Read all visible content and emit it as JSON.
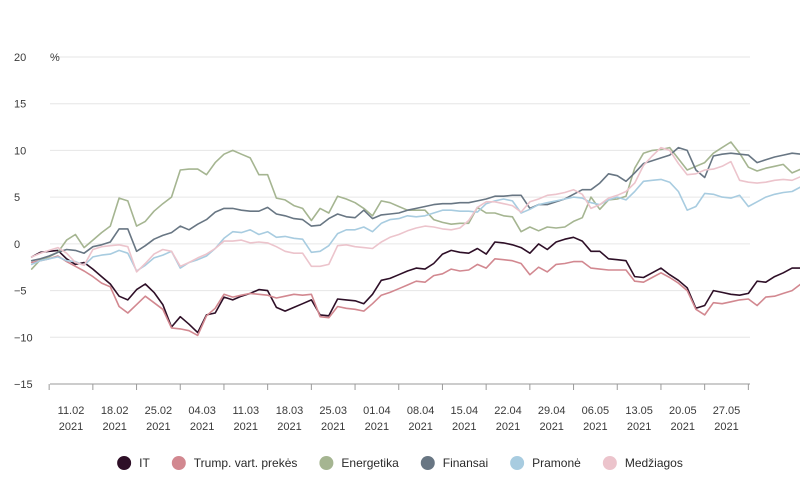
{
  "chart_data": {
    "type": "line",
    "unit_label": "%",
    "ylim": [
      -15,
      20
    ],
    "yticks": [
      20,
      15,
      10,
      5,
      0,
      -5,
      -10,
      -15
    ],
    "ytick_labels": [
      "20",
      "15",
      "10",
      "5",
      "0",
      "−5",
      "−10",
      "−15"
    ],
    "xticks": [
      {
        "line1": "11.02",
        "line2": "2021"
      },
      {
        "line1": "18.02",
        "line2": "2021"
      },
      {
        "line1": "25.02",
        "line2": "2021"
      },
      {
        "line1": "04.03",
        "line2": "2021"
      },
      {
        "line1": "11.03",
        "line2": "2021"
      },
      {
        "line1": "18.03",
        "line2": "2021"
      },
      {
        "line1": "25.03",
        "line2": "2021"
      },
      {
        "line1": "01.04",
        "line2": "2021"
      },
      {
        "line1": "08.04",
        "line2": "2021"
      },
      {
        "line1": "15.04",
        "line2": "2021"
      },
      {
        "line1": "22.04",
        "line2": "2021"
      },
      {
        "line1": "29.04",
        "line2": "2021"
      },
      {
        "line1": "06.05",
        "line2": "2021"
      },
      {
        "line1": "13.05",
        "line2": "2021"
      },
      {
        "line1": "20.05",
        "line2": "2021"
      },
      {
        "line1": "27.05",
        "line2": "2021"
      }
    ],
    "grid": true,
    "legend_position": "bottom",
    "x_start_index": -0.9,
    "x_step": 0.2,
    "series": [
      {
        "name": "IT",
        "color": "#2e0f27",
        "values": [
          -1.4,
          -0.9,
          -0.8,
          -0.7,
          -1.6,
          -2.2,
          -2.0,
          -2.7,
          -3.5,
          -4.3,
          -5.6,
          -6.0,
          -4.9,
          -4.3,
          -5.2,
          -6.5,
          -8.9,
          -7.8,
          -8.6,
          -9.5,
          -7.6,
          -7.4,
          -5.7,
          -6.0,
          -5.6,
          -5.3,
          -4.9,
          -5.0,
          -6.8,
          -7.2,
          -6.8,
          -6.4,
          -6.0,
          -7.6,
          -7.7,
          -5.9,
          -6.0,
          -6.1,
          -6.4,
          -5.4,
          -3.9,
          -3.7,
          -3.3,
          -2.9,
          -2.6,
          -2.7,
          -2.1,
          -1.1,
          -0.7,
          -0.9,
          -1.0,
          -0.5,
          -1.1,
          0.2,
          0.1,
          -0.1,
          -0.4,
          -1.0,
          0.0,
          -0.6,
          0.2,
          0.5,
          0.7,
          0.3,
          -0.8,
          -0.8,
          -1.6,
          -1.7,
          -1.8,
          -3.5,
          -3.6,
          -3.1,
          -2.6,
          -3.3,
          -3.9,
          -4.7,
          -6.9,
          -6.6,
          -5.0,
          -5.2,
          -5.4,
          -5.5,
          -5.3,
          -4.0,
          -4.1,
          -3.5,
          -3.1,
          -2.6,
          -2.6,
          -2.9,
          -2.5,
          -2.4,
          -2.4,
          -2.3
        ]
      },
      {
        "name": "Trump. vart. prekės",
        "color": "#d28890",
        "values": [
          -2.0,
          -1.8,
          -1.6,
          -1.3,
          -1.9,
          -2.4,
          -2.9,
          -3.5,
          -4.2,
          -4.6,
          -6.7,
          -7.4,
          -6.5,
          -5.6,
          -6.3,
          -7.0,
          -9.0,
          -9.1,
          -9.3,
          -9.8,
          -7.7,
          -6.9,
          -5.4,
          -5.7,
          -5.5,
          -5.3,
          -5.4,
          -5.5,
          -5.8,
          -5.6,
          -5.4,
          -5.5,
          -5.4,
          -7.8,
          -7.9,
          -6.7,
          -6.9,
          -7.0,
          -7.2,
          -6.4,
          -5.5,
          -5.2,
          -4.8,
          -4.4,
          -4.0,
          -4.1,
          -3.4,
          -3.2,
          -2.7,
          -2.9,
          -2.8,
          -2.2,
          -2.6,
          -1.6,
          -1.7,
          -1.8,
          -2.1,
          -3.3,
          -2.5,
          -3.0,
          -2.2,
          -2.1,
          -1.9,
          -1.9,
          -2.6,
          -2.7,
          -2.8,
          -2.8,
          -2.8,
          -4.0,
          -4.1,
          -3.6,
          -3.1,
          -3.6,
          -4.2,
          -5.0,
          -7.0,
          -7.6,
          -6.3,
          -6.4,
          -6.2,
          -6.0,
          -5.9,
          -6.6,
          -5.7,
          -5.6,
          -5.3,
          -5.0,
          -4.3,
          -4.0,
          -3.9,
          -3.9,
          -3.8,
          -3.8
        ]
      },
      {
        "name": "Energetika",
        "color": "#a5b591",
        "values": [
          -2.7,
          -1.7,
          -1.4,
          -0.9,
          0.4,
          1.0,
          -0.4,
          0.4,
          1.2,
          1.9,
          4.9,
          4.6,
          1.9,
          2.4,
          3.5,
          4.3,
          5.0,
          7.9,
          8.0,
          8.0,
          7.4,
          8.7,
          9.6,
          10.0,
          9.6,
          9.2,
          7.4,
          7.4,
          4.9,
          4.7,
          4.1,
          3.8,
          2.5,
          3.8,
          3.3,
          5.1,
          4.8,
          4.4,
          3.8,
          3.0,
          4.6,
          4.4,
          4.0,
          3.6,
          3.6,
          3.6,
          2.6,
          2.3,
          2.1,
          2.2,
          2.2,
          3.9,
          3.3,
          3.3,
          3.0,
          2.9,
          1.3,
          1.8,
          1.4,
          1.8,
          1.7,
          1.8,
          2.4,
          2.8,
          5.0,
          3.7,
          4.7,
          4.8,
          5.1,
          8.1,
          9.7,
          10.0,
          10.1,
          10.3,
          9.1,
          7.9,
          8.3,
          8.7,
          9.7,
          10.3,
          10.9,
          9.7,
          8.2,
          7.8,
          8.1,
          8.3,
          8.5,
          7.6,
          8.0,
          8.2,
          8.3,
          8.4,
          8.4,
          8.4
        ]
      },
      {
        "name": "Finansai",
        "color": "#687683",
        "values": [
          -1.8,
          -1.6,
          -1.3,
          -0.9,
          -0.6,
          -0.7,
          -1.0,
          -0.3,
          -0.1,
          0.2,
          1.6,
          1.6,
          -0.8,
          -0.2,
          0.5,
          0.9,
          1.2,
          1.9,
          1.5,
          2.1,
          2.6,
          3.4,
          3.8,
          3.8,
          3.6,
          3.5,
          3.5,
          3.9,
          3.2,
          3.0,
          2.7,
          2.6,
          1.9,
          2.0,
          2.7,
          3.2,
          2.9,
          2.8,
          3.6,
          2.7,
          3.1,
          3.2,
          3.3,
          3.6,
          3.8,
          4.0,
          4.2,
          4.3,
          4.3,
          4.4,
          4.4,
          4.6,
          4.8,
          5.1,
          5.1,
          5.2,
          5.2,
          3.8,
          4.2,
          4.2,
          4.5,
          4.8,
          5.3,
          5.8,
          5.8,
          6.5,
          7.5,
          7.3,
          6.7,
          7.6,
          8.6,
          8.9,
          9.2,
          9.5,
          10.3,
          10.0,
          7.9,
          7.1,
          9.4,
          9.6,
          9.7,
          9.6,
          9.5,
          8.7,
          9.0,
          9.3,
          9.5,
          9.7,
          9.6,
          9.8,
          10.5,
          10.9,
          10.8,
          10.7
        ]
      },
      {
        "name": "Pramonė",
        "color": "#a8cce0",
        "values": [
          -2.2,
          -1.8,
          -1.6,
          -1.4,
          -1.8,
          -1.9,
          -2.3,
          -1.4,
          -1.2,
          -1.1,
          -0.7,
          -1.0,
          -2.9,
          -2.3,
          -1.5,
          -1.2,
          -0.8,
          -2.6,
          -2.0,
          -1.7,
          -1.3,
          -0.5,
          0.6,
          1.3,
          1.2,
          1.5,
          1.0,
          1.3,
          0.7,
          0.8,
          0.6,
          0.5,
          -0.9,
          -0.8,
          -0.2,
          1.1,
          1.5,
          1.5,
          1.8,
          1.3,
          2.2,
          2.6,
          2.7,
          3.0,
          2.9,
          3.0,
          3.3,
          3.6,
          3.6,
          3.5,
          3.5,
          3.4,
          4.3,
          4.6,
          4.8,
          4.6,
          3.3,
          3.7,
          4.2,
          4.4,
          4.6,
          4.8,
          5.0,
          4.9,
          4.4,
          4.2,
          4.7,
          5.0,
          4.7,
          5.6,
          6.7,
          6.8,
          6.9,
          6.6,
          5.6,
          3.6,
          4.0,
          5.4,
          5.3,
          5.0,
          4.9,
          5.2,
          4.0,
          4.5,
          5.0,
          5.3,
          5.5,
          5.6,
          6.1,
          6.7,
          6.6,
          6.5,
          6.5,
          6.5
        ]
      },
      {
        "name": "Medžiagos",
        "color": "#ecc4cc",
        "values": [
          -1.4,
          -1.0,
          -0.7,
          -0.4,
          -1.0,
          -2.0,
          -2.3,
          -0.6,
          -0.3,
          -0.2,
          -0.1,
          -0.3,
          -3.0,
          -2.1,
          -1.1,
          -0.6,
          -0.8,
          -2.4,
          -2.0,
          -1.5,
          -1.1,
          -0.5,
          0.3,
          0.3,
          0.4,
          0.1,
          0.2,
          0.1,
          -0.3,
          -0.8,
          -1.0,
          -1.0,
          -2.4,
          -2.4,
          -2.2,
          -0.2,
          -0.1,
          -0.3,
          -0.4,
          -0.5,
          0.2,
          0.7,
          1.0,
          1.4,
          1.7,
          1.9,
          1.8,
          1.6,
          1.5,
          1.7,
          2.5,
          3.9,
          4.5,
          4.5,
          4.3,
          4.1,
          3.4,
          4.5,
          4.8,
          5.2,
          5.3,
          5.5,
          5.8,
          5.3,
          3.8,
          4.2,
          4.9,
          5.2,
          5.6,
          6.5,
          8.4,
          9.4,
          10.3,
          10.0,
          8.6,
          7.4,
          7.5,
          7.9,
          8.0,
          8.3,
          8.8,
          6.8,
          6.6,
          6.5,
          6.6,
          6.8,
          6.9,
          6.8,
          7.2,
          7.5,
          7.7,
          7.8,
          7.8,
          7.8
        ]
      }
    ]
  }
}
